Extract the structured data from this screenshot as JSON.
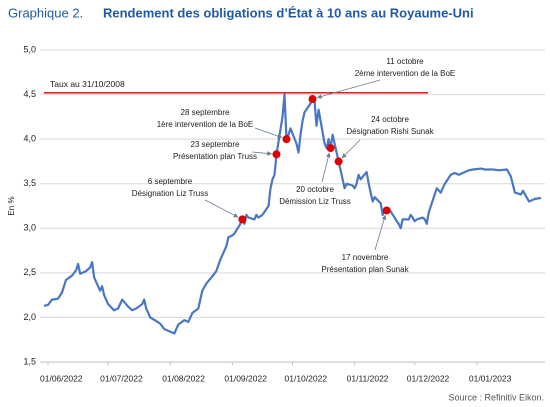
{
  "chart_data": {
    "type": "line",
    "title_number": "Graphique 2.",
    "title": "Rendement des obligations d’État à 10 ans au Royaume-Uni",
    "ylabel": "En %",
    "source": "Source : Refinitiv Eikon.",
    "color": "#4a77c4",
    "grid": true,
    "x": [
      "30/05/2022",
      "01/06/2022",
      "03/06/2022",
      "06/06/2022",
      "08/06/2022",
      "10/06/2022",
      "13/06/2022",
      "15/06/2022",
      "16/06/2022",
      "17/06/2022",
      "20/06/2022",
      "22/06/2022",
      "23/06/2022",
      "24/06/2022",
      "27/06/2022",
      "28/06/2022",
      "29/06/2022",
      "01/07/2022",
      "04/07/2022",
      "06/07/2022",
      "08/07/2022",
      "11/07/2022",
      "13/07/2022",
      "15/07/2022",
      "18/07/2022",
      "19/07/2022",
      "20/07/2022",
      "22/07/2022",
      "25/07/2022",
      "27/07/2022",
      "29/07/2022",
      "01/08/2022",
      "03/08/2022",
      "05/08/2022",
      "08/08/2022",
      "10/08/2022",
      "12/08/2022",
      "15/08/2022",
      "17/08/2022",
      "19/08/2022",
      "22/08/2022",
      "24/08/2022",
      "26/08/2022",
      "29/08/2022",
      "30/08/2022",
      "01/09/2022",
      "02/09/2022",
      "05/09/2022",
      "06/09/2022",
      "07/09/2022",
      "08/09/2022",
      "09/09/2022",
      "12/09/2022",
      "13/09/2022",
      "14/09/2022",
      "16/09/2022",
      "19/09/2022",
      "20/09/2022",
      "21/09/2022",
      "22/09/2022",
      "23/09/2022",
      "26/09/2022",
      "27/09/2022",
      "28/09/2022",
      "29/09/2022",
      "30/09/2022",
      "03/10/2022",
      "04/10/2022",
      "05/10/2022",
      "06/10/2022",
      "07/10/2022",
      "10/10/2022",
      "11/10/2022",
      "12/10/2022",
      "13/10/2022",
      "14/10/2022",
      "17/10/2022",
      "18/10/2022",
      "19/10/2022",
      "20/10/2022",
      "21/10/2022",
      "24/10/2022",
      "25/10/2022",
      "26/10/2022",
      "27/10/2022",
      "28/10/2022",
      "31/10/2022",
      "01/11/2022",
      "02/11/2022",
      "03/11/2022",
      "04/11/2022",
      "07/11/2022",
      "08/11/2022",
      "09/11/2022",
      "10/11/2022",
      "11/11/2022",
      "14/11/2022",
      "15/11/2022",
      "16/11/2022",
      "17/11/2022",
      "18/11/2022",
      "21/11/2022",
      "22/11/2022",
      "23/11/2022",
      "24/11/2022",
      "25/11/2022",
      "28/11/2022",
      "29/11/2022",
      "30/11/2022",
      "01/12/2022",
      "02/12/2022",
      "05/12/2022",
      "06/12/2022",
      "07/12/2022",
      "08/12/2022",
      "12/12/2022",
      "14/12/2022",
      "16/12/2022",
      "19/12/2022",
      "21/12/2022",
      "23/12/2022",
      "28/12/2022",
      "30/12/2022",
      "03/01/2023",
      "05/01/2023",
      "09/01/2023",
      "12/01/2023",
      "16/01/2023",
      "18/01/2023",
      "20/01/2023",
      "23/01/2023",
      "24/01/2023",
      "27/01/2023",
      "30/01/2023",
      "02/02/2023"
    ],
    "values": [
      2.13,
      2.14,
      2.2,
      2.21,
      2.28,
      2.42,
      2.47,
      2.53,
      2.6,
      2.49,
      2.52,
      2.56,
      2.62,
      2.45,
      2.3,
      2.35,
      2.25,
      2.15,
      2.08,
      2.1,
      2.2,
      2.12,
      2.08,
      2.1,
      2.15,
      2.2,
      2.1,
      2.0,
      1.96,
      1.93,
      1.87,
      1.84,
      1.82,
      1.92,
      1.97,
      1.95,
      2.05,
      2.1,
      2.3,
      2.38,
      2.46,
      2.52,
      2.65,
      2.8,
      2.9,
      2.92,
      2.94,
      3.05,
      3.1,
      3.05,
      3.15,
      3.12,
      3.1,
      3.15,
      3.12,
      3.15,
      3.25,
      3.45,
      3.55,
      3.6,
      3.83,
      4.25,
      4.5,
      4.0,
      4.05,
      4.12,
      3.95,
      3.85,
      4.05,
      4.2,
      4.3,
      4.4,
      4.45,
      4.43,
      4.15,
      4.33,
      3.95,
      3.9,
      4.0,
      3.9,
      4.05,
      3.75,
      3.65,
      3.55,
      3.45,
      3.5,
      3.48,
      3.45,
      3.5,
      3.6,
      3.55,
      3.63,
      3.5,
      3.4,
      3.3,
      3.35,
      3.28,
      3.15,
      3.2,
      3.2,
      3.22,
      3.12,
      3.08,
      3.05,
      3.0,
      3.1,
      3.1,
      3.15,
      3.12,
      3.08,
      3.1,
      3.12,
      3.1,
      3.05,
      3.18,
      3.45,
      3.4,
      3.5,
      3.6,
      3.62,
      3.6,
      3.65,
      3.66,
      3.67,
      3.66,
      3.66,
      3.65,
      3.66,
      3.58,
      3.4,
      3.38,
      3.42,
      3.3,
      3.33,
      3.34
    ],
    "xlim": [
      "30/05/2022",
      "02/02/2023"
    ],
    "xticks": [
      "01/06/2022",
      "01/07/2022",
      "01/08/2022",
      "01/09/2022",
      "01/10/2022",
      "01/11/2022",
      "01/12/2022",
      "01/01/2023"
    ],
    "ylim": [
      1.5,
      5.0
    ],
    "yticks": [
      {
        "value": 1.5,
        "label": "1,5"
      },
      {
        "value": 2.0,
        "label": "2,0"
      },
      {
        "value": 2.5,
        "label": "2,5"
      },
      {
        "value": 3.0,
        "label": "3,0"
      },
      {
        "value": 3.5,
        "label": "3,5"
      },
      {
        "value": 4.0,
        "label": "4,0"
      },
      {
        "value": 4.5,
        "label": "4,5"
      },
      {
        "value": 5.0,
        "label": "5,0"
      }
    ],
    "reference_line": {
      "value": 4.52,
      "label": "Taux au 31/10/2008",
      "color": "#e00000"
    },
    "annotation_color": "#e00000",
    "annotations": [
      {
        "x": "06/09/2022",
        "y": 3.1,
        "lines": [
          "6 septembre",
          "Désignation Liz Truss"
        ]
      },
      {
        "x": "23/09/2022",
        "y": 3.83,
        "lines": [
          "23 septembre",
          "Présentation plan Truss"
        ]
      },
      {
        "x": "28/09/2022",
        "y": 4.0,
        "lines": [
          "28 septembre",
          "1ère intervention de la BoE"
        ]
      },
      {
        "x": "11/10/2022",
        "y": 4.45,
        "lines": [
          "11 octobre",
          "2ème intervention de la BoE"
        ]
      },
      {
        "x": "20/10/2022",
        "y": 3.9,
        "lines": [
          "20 octobre",
          "Démission Liz Truss"
        ]
      },
      {
        "x": "24/10/2022",
        "y": 3.75,
        "lines": [
          "24 octobre",
          "Désignation Rishi Sunak"
        ]
      },
      {
        "x": "17/11/2022",
        "y": 3.2,
        "lines": [
          "17 novembre",
          "Présentation plan Sunak"
        ]
      }
    ]
  }
}
